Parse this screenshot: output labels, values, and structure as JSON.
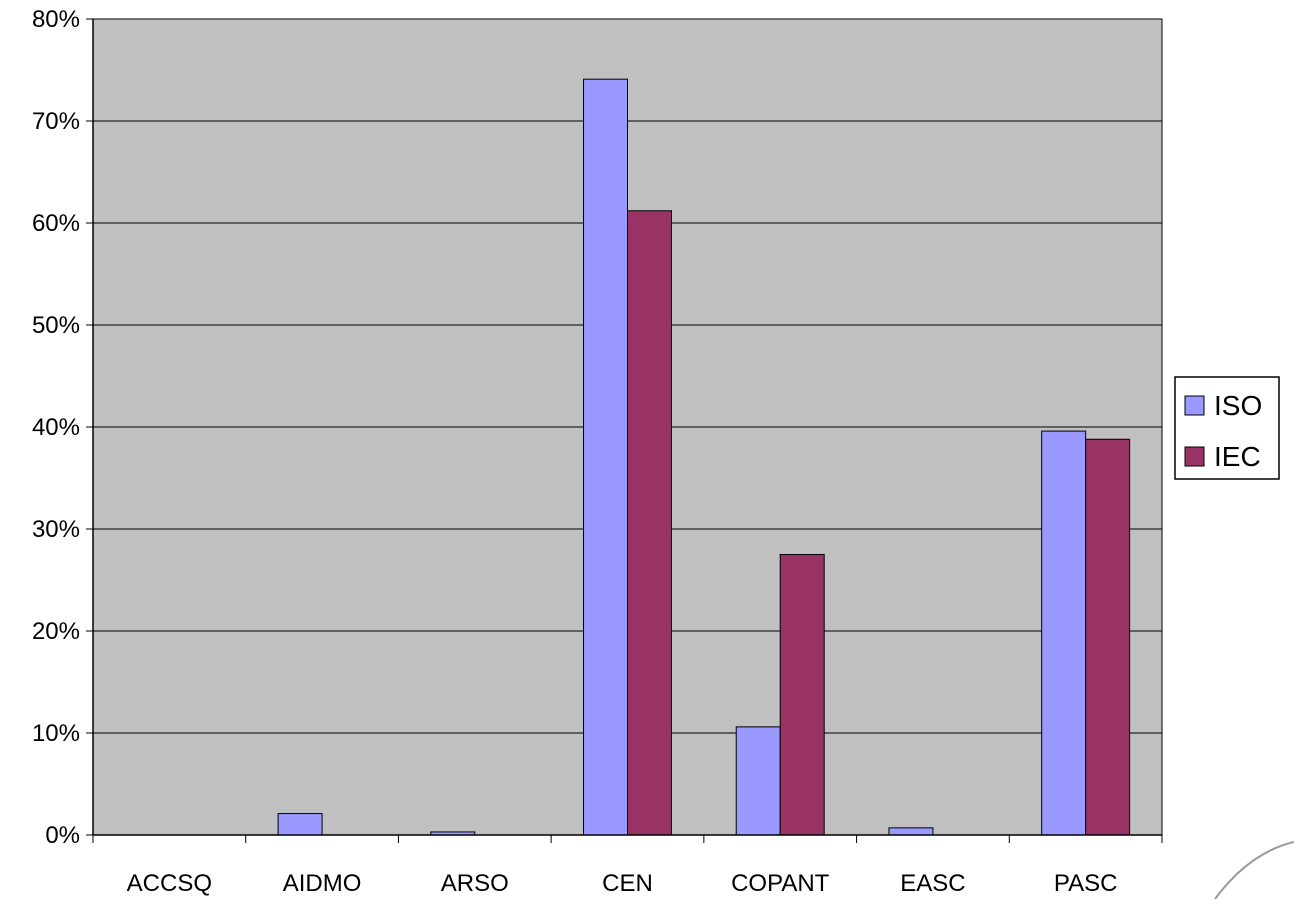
{
  "chart_data": {
    "type": "bar",
    "categories": [
      "ACCSQ",
      "AIDMO",
      "ARSO",
      "CEN",
      "COPANT",
      "EASC",
      "PASC"
    ],
    "series": [
      {
        "name": "ISO",
        "values": [
          0,
          2.1,
          0.3,
          74.1,
          10.6,
          0.7,
          39.6
        ]
      },
      {
        "name": "IEC",
        "values": [
          0,
          0,
          0,
          61.2,
          27.5,
          0,
          38.8
        ]
      }
    ],
    "ylim": [
      0,
      80
    ],
    "yticks": [
      0,
      10,
      20,
      30,
      40,
      50,
      60,
      70,
      80
    ],
    "ytick_labels": [
      "0%",
      "10%",
      "20%",
      "30%",
      "40%",
      "50%",
      "60%",
      "70%",
      "80%"
    ],
    "title": "",
    "xlabel": "",
    "ylabel": "",
    "grid": true,
    "legend_position": "right",
    "colors": {
      "ISO": "#9999ff",
      "IEC": "#993366",
      "plot_background": "#c0c0c0",
      "gridline": "#000000"
    }
  }
}
